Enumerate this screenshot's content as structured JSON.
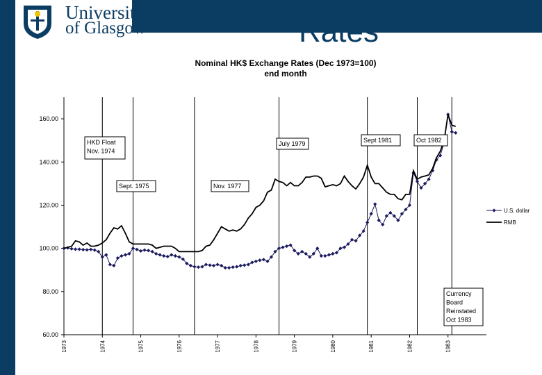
{
  "header": {
    "logo_line1": "University",
    "logo_line2": "of Glasgow",
    "slide_title": "Rates"
  },
  "colors": {
    "brand": "#0b3d63",
    "usd_series": "#1a1a5e",
    "rmb_series": "#000000"
  },
  "chart_data": {
    "type": "line",
    "title": "Nominal HK$ Exchange Rates (Dec 1973=100)",
    "subtitle": "end month",
    "xlabel": "",
    "ylabel": "",
    "ylim": [
      60,
      170
    ],
    "xlim": [
      1973.0,
      1984.0
    ],
    "y_ticks": [
      "60.00",
      "80.00",
      "100.00",
      "120.00",
      "140.00",
      "160.00"
    ],
    "x_ticks": [
      "1973",
      "1974",
      "1975",
      "1976",
      "1977",
      "1978",
      "1979",
      "1980",
      "1981",
      "1982",
      "1983"
    ],
    "grid": false,
    "legend_position": "right",
    "series": [
      {
        "name": "U.S. dollar",
        "marker": "diamond",
        "x": [
          1973.0,
          1973.1,
          1973.2,
          1973.3,
          1973.4,
          1973.5,
          1973.6,
          1973.7,
          1973.8,
          1973.9,
          1974.0,
          1974.1,
          1974.2,
          1974.3,
          1974.4,
          1974.5,
          1974.6,
          1974.7,
          1974.8,
          1974.9,
          1975.0,
          1975.1,
          1975.2,
          1975.3,
          1975.4,
          1975.5,
          1975.6,
          1975.7,
          1975.8,
          1975.9,
          1976.0,
          1976.1,
          1976.2,
          1976.3,
          1976.4,
          1976.5,
          1976.6,
          1976.7,
          1976.8,
          1976.9,
          1977.0,
          1977.1,
          1977.2,
          1977.3,
          1977.4,
          1977.5,
          1977.6,
          1977.7,
          1977.8,
          1977.9,
          1978.0,
          1978.1,
          1978.2,
          1978.3,
          1978.4,
          1978.5,
          1978.6,
          1978.7,
          1978.8,
          1978.9,
          1979.0,
          1979.1,
          1979.2,
          1979.3,
          1979.4,
          1979.5,
          1979.6,
          1979.7,
          1979.8,
          1979.9,
          1980.0,
          1980.1,
          1980.2,
          1980.3,
          1980.4,
          1980.5,
          1980.6,
          1980.7,
          1980.8,
          1980.9,
          1981.0,
          1981.1,
          1981.2,
          1981.3,
          1981.4,
          1981.5,
          1981.6,
          1981.7,
          1981.8,
          1981.9,
          1982.0,
          1982.1,
          1982.2,
          1982.3,
          1982.4,
          1982.5,
          1982.6,
          1982.7,
          1982.8,
          1982.9,
          1983.0,
          1983.1,
          1983.2
        ],
        "values": [
          100.0,
          100.2,
          99.8,
          99.6,
          99.6,
          99.4,
          99.3,
          99.5,
          99.2,
          98.5,
          96.0,
          97.0,
          92.5,
          92.0,
          95.5,
          96.5,
          97.0,
          97.5,
          100.0,
          99.5,
          98.8,
          99.2,
          99.0,
          98.5,
          97.5,
          97.0,
          96.5,
          96.2,
          97.0,
          96.5,
          96.0,
          95.0,
          93.0,
          92.0,
          91.5,
          91.3,
          91.5,
          92.5,
          92.2,
          92.0,
          92.5,
          92.0,
          91.0,
          91.0,
          91.3,
          91.5,
          92.0,
          92.2,
          92.5,
          93.5,
          94.0,
          94.5,
          94.8,
          94.0,
          96.0,
          98.5,
          100.0,
          100.5,
          101.0,
          101.5,
          99.0,
          97.5,
          98.5,
          97.5,
          96.0,
          97.5,
          100.0,
          96.5,
          96.5,
          97.0,
          97.5,
          98.0,
          100.0,
          100.5,
          102.0,
          104.0,
          103.5,
          106.0,
          108.0,
          112.0,
          116.0,
          120.5,
          113.0,
          111.0,
          115.0,
          116.5,
          115.0,
          113.0,
          116.0,
          118.0,
          120.0,
          135.0,
          131.0,
          128.0,
          130.0,
          132.0,
          136.0,
          141.0,
          143.0,
          149.0,
          162.0,
          154.0,
          153.5
        ]
      },
      {
        "name": "RMB",
        "marker": "none",
        "x": [
          1973.0,
          1973.1,
          1973.2,
          1973.3,
          1973.4,
          1973.5,
          1973.6,
          1973.7,
          1973.8,
          1973.9,
          1974.0,
          1974.1,
          1974.2,
          1974.3,
          1974.4,
          1974.5,
          1974.6,
          1974.7,
          1974.8,
          1974.9,
          1975.0,
          1975.1,
          1975.2,
          1975.3,
          1975.4,
          1975.5,
          1975.6,
          1975.7,
          1975.8,
          1975.9,
          1976.0,
          1976.1,
          1976.2,
          1976.3,
          1976.4,
          1976.5,
          1976.6,
          1976.7,
          1976.8,
          1976.9,
          1977.0,
          1977.1,
          1977.2,
          1977.3,
          1977.4,
          1977.5,
          1977.6,
          1977.7,
          1977.8,
          1977.9,
          1978.0,
          1978.1,
          1978.2,
          1978.3,
          1978.4,
          1978.5,
          1978.6,
          1978.7,
          1978.8,
          1978.9,
          1979.0,
          1979.1,
          1979.2,
          1979.3,
          1979.4,
          1979.5,
          1979.6,
          1979.7,
          1979.8,
          1979.9,
          1980.0,
          1980.1,
          1980.2,
          1980.3,
          1980.4,
          1980.5,
          1980.6,
          1980.7,
          1980.8,
          1980.9,
          1981.0,
          1981.1,
          1981.2,
          1981.3,
          1981.4,
          1981.5,
          1981.6,
          1981.7,
          1981.8,
          1981.9,
          1982.0,
          1982.1,
          1982.2,
          1982.3,
          1982.4,
          1982.5,
          1982.6,
          1982.7,
          1982.8,
          1982.9,
          1983.0,
          1983.1,
          1983.2
        ],
        "values": [
          100.0,
          100.5,
          101.0,
          103.5,
          103.0,
          101.5,
          102.5,
          101.0,
          101.0,
          101.5,
          102.5,
          104.0,
          107.0,
          109.5,
          109.0,
          110.5,
          107.0,
          103.0,
          102.0,
          102.0,
          102.0,
          102.0,
          102.0,
          101.5,
          100.0,
          100.5,
          101.0,
          101.0,
          101.0,
          100.0,
          98.5,
          98.5,
          98.5,
          98.5,
          98.5,
          98.5,
          99.0,
          101.0,
          101.5,
          104.0,
          107.0,
          110.0,
          109.0,
          108.0,
          108.5,
          108.0,
          109.0,
          111.0,
          114.0,
          116.0,
          119.0,
          120.0,
          122.0,
          126.0,
          127.0,
          132.0,
          131.0,
          130.5,
          129.0,
          130.5,
          129.0,
          129.0,
          130.5,
          133.0,
          133.0,
          133.5,
          133.5,
          132.5,
          128.5,
          129.0,
          129.5,
          129.0,
          130.0,
          133.5,
          131.0,
          129.0,
          127.5,
          130.0,
          133.0,
          138.5,
          133.0,
          130.0,
          130.0,
          128.0,
          126.0,
          125.0,
          125.0,
          123.0,
          122.5,
          125.0,
          125.0,
          136.0,
          132.0,
          133.0,
          133.5,
          134.0,
          137.0,
          142.0,
          145.0,
          150.0,
          162.0,
          157.0,
          156.5
        ]
      }
    ],
    "events": [
      {
        "x": 1974.0,
        "label_lines": [
          "HKD Float",
          "Nov. 1974"
        ]
      },
      {
        "x": 1974.8,
        "label_lines": [
          "Sept. 1975"
        ]
      },
      {
        "x": 1976.4,
        "label_lines": [
          "Nov. 1977"
        ]
      },
      {
        "x": 1978.6,
        "label_lines": [
          "July 1979"
        ]
      },
      {
        "x": 1980.9,
        "label_lines": [
          "Sept 1981"
        ]
      },
      {
        "x": 1982.2,
        "label_lines": [
          "Oct 1982"
        ]
      },
      {
        "x": 1983.1,
        "label_lines": [
          "Currency",
          "Board",
          "Reinstated",
          "Oct 1983"
        ]
      }
    ]
  }
}
